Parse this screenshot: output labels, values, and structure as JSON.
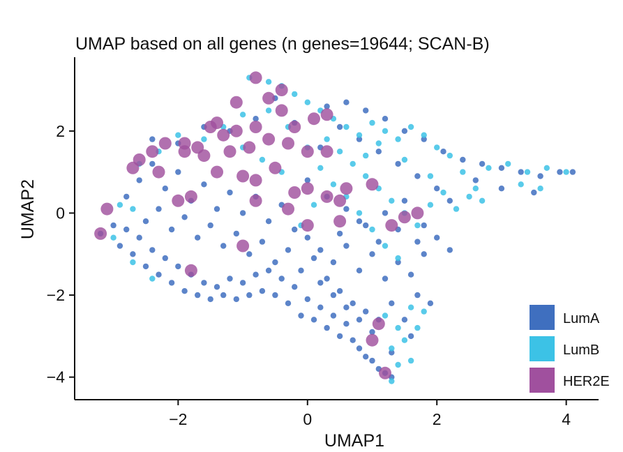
{
  "chart_data": {
    "type": "scatter",
    "title": "UMAP based on all genes (n genes=19644; SCAN-B)",
    "xlabel": "UMAP1",
    "ylabel": "UMAP2",
    "xlim": [
      -3.6,
      4.5
    ],
    "ylim": [
      -4.55,
      3.8
    ],
    "x_ticks": [
      -2,
      0,
      2,
      4
    ],
    "y_ticks": [
      -4,
      -2,
      0,
      2
    ],
    "x_tick_labels": [
      "−2",
      "0",
      "2",
      "4"
    ],
    "y_tick_labels": [
      "−4",
      "−2",
      "0",
      "2"
    ],
    "grid": false,
    "legend_position": "bottom-right",
    "series": [
      {
        "name": "LumA",
        "color": "#3f6fbf",
        "marker_size": "small",
        "points": [
          [
            -3.2,
            -0.5
          ],
          [
            -3.0,
            -0.3
          ],
          [
            -2.9,
            -0.8
          ],
          [
            -2.8,
            -0.4
          ],
          [
            -2.7,
            -1.0
          ],
          [
            -2.6,
            -0.6
          ],
          [
            -2.5,
            -1.3
          ],
          [
            -2.4,
            -0.9
          ],
          [
            -2.3,
            -1.5
          ],
          [
            -2.2,
            -1.1
          ],
          [
            -2.1,
            -1.7
          ],
          [
            -2.0,
            -1.3
          ],
          [
            -1.9,
            -1.9
          ],
          [
            -1.8,
            -1.5
          ],
          [
            -1.7,
            -2.0
          ],
          [
            -1.6,
            -1.7
          ],
          [
            -1.5,
            -2.1
          ],
          [
            -1.4,
            -1.8
          ],
          [
            -1.3,
            -2.0
          ],
          [
            -1.2,
            -1.6
          ],
          [
            -1.1,
            -2.1
          ],
          [
            -1.0,
            -1.7
          ],
          [
            -0.9,
            -2.0
          ],
          [
            -0.8,
            -1.5
          ],
          [
            -0.7,
            -1.9
          ],
          [
            -0.6,
            -1.4
          ],
          [
            -0.5,
            -2.0
          ],
          [
            -0.4,
            -1.6
          ],
          [
            -0.3,
            -2.2
          ],
          [
            -0.2,
            -1.8
          ],
          [
            -0.1,
            -2.5
          ],
          [
            0.0,
            -2.1
          ],
          [
            0.1,
            -2.6
          ],
          [
            0.2,
            -2.3
          ],
          [
            0.3,
            -2.8
          ],
          [
            0.4,
            -2.5
          ],
          [
            0.5,
            -3.0
          ],
          [
            0.6,
            -2.7
          ],
          [
            0.7,
            -3.1
          ],
          [
            0.8,
            -3.3
          ],
          [
            0.9,
            -3.5
          ],
          [
            1.0,
            -3.6
          ],
          [
            1.1,
            -3.8
          ],
          [
            1.2,
            -3.9
          ],
          [
            1.3,
            -4.0
          ],
          [
            -2.8,
            0.4
          ],
          [
            -2.6,
            0.8
          ],
          [
            -2.4,
            1.2
          ],
          [
            -2.2,
            0.6
          ],
          [
            -2.0,
            1.0
          ],
          [
            -1.8,
            0.3
          ],
          [
            -1.6,
            0.7
          ],
          [
            -1.4,
            0.1
          ],
          [
            -1.2,
            0.5
          ],
          [
            -1.0,
            0.0
          ],
          [
            -0.8,
            0.4
          ],
          [
            -0.6,
            -0.2
          ],
          [
            -0.4,
            0.2
          ],
          [
            -0.2,
            -0.4
          ],
          [
            0.0,
            -0.6
          ],
          [
            0.2,
            -0.9
          ],
          [
            0.4,
            -1.2
          ],
          [
            0.6,
            -0.8
          ],
          [
            0.8,
            -1.4
          ],
          [
            1.0,
            -1.0
          ],
          [
            1.2,
            -1.6
          ],
          [
            1.4,
            -1.2
          ],
          [
            1.6,
            -1.5
          ],
          [
            1.8,
            -1.0
          ],
          [
            -2.5,
            -0.2
          ],
          [
            -2.3,
            0.1
          ],
          [
            -2.1,
            -0.4
          ],
          [
            -1.9,
            -0.1
          ],
          [
            -1.7,
            -0.6
          ],
          [
            -1.5,
            -0.3
          ],
          [
            -1.3,
            -0.8
          ],
          [
            -1.1,
            -0.5
          ],
          [
            -0.9,
            -1.0
          ],
          [
            -0.7,
            -0.7
          ],
          [
            -0.5,
            -1.2
          ],
          [
            -0.3,
            -0.9
          ],
          [
            -0.1,
            -1.4
          ],
          [
            0.1,
            -1.1
          ],
          [
            0.3,
            -1.6
          ],
          [
            0.5,
            -1.9
          ],
          [
            0.7,
            -2.2
          ],
          [
            0.9,
            -2.4
          ],
          [
            1.1,
            -2.6
          ],
          [
            1.3,
            -2.2
          ],
          [
            1.5,
            -2.6
          ],
          [
            1.7,
            -2.0
          ],
          [
            1.9,
            -2.2
          ],
          [
            1.6,
            -3.0
          ],
          [
            1.3,
            -3.4
          ],
          [
            1.0,
            -2.9
          ],
          [
            0.8,
            -2.6
          ],
          [
            0.6,
            -2.3
          ],
          [
            0.4,
            -2.0
          ],
          [
            0.2,
            -1.7
          ],
          [
            0.3,
            2.6
          ],
          [
            0.6,
            2.7
          ],
          [
            0.9,
            2.5
          ],
          [
            1.2,
            2.3
          ],
          [
            1.5,
            2.0
          ],
          [
            1.8,
            1.8
          ],
          [
            2.1,
            1.5
          ],
          [
            2.4,
            1.3
          ],
          [
            2.7,
            1.2
          ],
          [
            3.0,
            1.1
          ],
          [
            3.3,
            1.0
          ],
          [
            3.6,
            0.9
          ],
          [
            3.9,
            1.0
          ],
          [
            4.1,
            1.0
          ],
          [
            3.5,
            0.5
          ],
          [
            3.0,
            0.6
          ],
          [
            2.6,
            0.8
          ],
          [
            2.2,
            0.3
          ],
          [
            2.0,
            0.6
          ],
          [
            1.7,
            0.9
          ],
          [
            1.4,
            1.2
          ],
          [
            1.1,
            1.5
          ],
          [
            0.8,
            1.8
          ],
          [
            0.5,
            2.1
          ],
          [
            0.2,
            1.6
          ],
          [
            -0.2,
            2.2
          ],
          [
            -0.5,
            2.8
          ],
          [
            -0.8,
            2.3
          ],
          [
            -1.2,
            2.0
          ],
          [
            -1.6,
            2.1
          ],
          [
            -2.0,
            1.7
          ],
          [
            -2.4,
            1.8
          ],
          [
            1.5,
            0.3
          ],
          [
            1.2,
            0.0
          ],
          [
            0.9,
            -0.3
          ],
          [
            0.6,
            0.1
          ],
          [
            0.3,
            0.4
          ],
          [
            0.0,
            0.8
          ],
          [
            1.8,
            -0.3
          ],
          [
            2.0,
            -0.6
          ],
          [
            2.2,
            -0.9
          ],
          [
            1.7,
            -0.7
          ],
          [
            1.4,
            -0.4
          ],
          [
            1.1,
            -0.7
          ],
          [
            0.8,
            -0.2
          ],
          [
            0.5,
            -0.5
          ]
        ]
      },
      {
        "name": "LumB",
        "color": "#3cc2e6",
        "marker_size": "small",
        "points": [
          [
            -0.9,
            3.3
          ],
          [
            -0.6,
            3.2
          ],
          [
            -0.4,
            3.1
          ],
          [
            -0.2,
            2.9
          ],
          [
            0.0,
            2.7
          ],
          [
            0.2,
            2.5
          ],
          [
            0.4,
            2.3
          ],
          [
            0.6,
            2.1
          ],
          [
            0.8,
            1.9
          ],
          [
            1.0,
            2.2
          ],
          [
            1.2,
            2.0
          ],
          [
            1.4,
            1.8
          ],
          [
            1.6,
            2.1
          ],
          [
            1.8,
            1.9
          ],
          [
            2.0,
            1.6
          ],
          [
            2.2,
            1.4
          ],
          [
            0.3,
            1.8
          ],
          [
            0.5,
            1.5
          ],
          [
            0.7,
            1.2
          ],
          [
            0.9,
            0.9
          ],
          [
            1.1,
            0.6
          ],
          [
            1.3,
            0.3
          ],
          [
            1.5,
            0.0
          ],
          [
            1.7,
            -0.3
          ],
          [
            1.9,
            0.2
          ],
          [
            2.1,
            0.5
          ],
          [
            2.3,
            0.1
          ],
          [
            2.5,
            0.4
          ],
          [
            2.7,
            0.3
          ],
          [
            2.8,
            1.1
          ],
          [
            3.1,
            1.2
          ],
          [
            3.4,
            1.0
          ],
          [
            3.7,
            1.1
          ],
          [
            4.0,
            1.0
          ],
          [
            3.3,
            0.7
          ],
          [
            3.6,
            0.6
          ],
          [
            -1.0,
            2.4
          ],
          [
            -1.3,
            2.1
          ],
          [
            -1.6,
            1.8
          ],
          [
            -2.0,
            1.9
          ],
          [
            -2.3,
            1.5
          ],
          [
            -2.6,
            1.2
          ],
          [
            -0.6,
            2.5
          ],
          [
            -0.3,
            2.1
          ],
          [
            0.0,
            1.6
          ],
          [
            0.2,
            1.1
          ],
          [
            0.4,
            0.7
          ],
          [
            0.6,
            0.4
          ],
          [
            0.8,
            0.0
          ],
          [
            1.0,
            -0.4
          ],
          [
            1.2,
            -0.8
          ],
          [
            1.4,
            -1.1
          ],
          [
            1.6,
            -2.3
          ],
          [
            1.4,
            -2.8
          ],
          [
            1.3,
            -3.3
          ],
          [
            1.4,
            -3.7
          ],
          [
            1.3,
            -4.1
          ],
          [
            1.6,
            -3.6
          ],
          [
            1.7,
            -2.8
          ],
          [
            1.8,
            -2.4
          ],
          [
            1.2,
            -2.5
          ],
          [
            1.5,
            -3.1
          ],
          [
            -2.9,
            0.2
          ],
          [
            -2.7,
            0.1
          ],
          [
            -3.0,
            -0.6
          ],
          [
            -2.7,
            -1.2
          ],
          [
            -2.4,
            -1.6
          ],
          [
            -0.1,
            -0.3
          ],
          [
            0.1,
            0.2
          ],
          [
            -0.4,
            1.0
          ],
          [
            -0.7,
            1.3
          ],
          [
            -1.0,
            1.6
          ],
          [
            0.9,
            1.4
          ],
          [
            1.1,
            1.7
          ],
          [
            1.5,
            1.3
          ],
          [
            1.9,
            0.9
          ],
          [
            2.4,
            1.0
          ],
          [
            2.6,
            0.6
          ]
        ]
      },
      {
        "name": "HER2E",
        "color": "#a0509e",
        "marker_size": "large",
        "points": [
          [
            -0.8,
            3.3
          ],
          [
            -0.4,
            3.0
          ],
          [
            -0.6,
            2.8
          ],
          [
            -1.1,
            2.7
          ],
          [
            -0.4,
            2.5
          ],
          [
            -0.2,
            2.1
          ],
          [
            0.1,
            2.3
          ],
          [
            0.3,
            2.4
          ],
          [
            -1.5,
            2.1
          ],
          [
            -1.4,
            2.2
          ],
          [
            -1.1,
            2.0
          ],
          [
            -0.8,
            2.1
          ],
          [
            -1.3,
            1.9
          ],
          [
            -1.7,
            1.6
          ],
          [
            -1.9,
            1.7
          ],
          [
            -2.2,
            1.7
          ],
          [
            -2.4,
            1.5
          ],
          [
            -2.6,
            1.3
          ],
          [
            -2.7,
            1.1
          ],
          [
            -2.3,
            1.0
          ],
          [
            -1.9,
            1.5
          ],
          [
            -1.6,
            1.4
          ],
          [
            -1.2,
            1.5
          ],
          [
            -0.9,
            1.6
          ],
          [
            -0.6,
            1.8
          ],
          [
            -0.3,
            1.7
          ],
          [
            0.0,
            1.5
          ],
          [
            0.3,
            1.5
          ],
          [
            -1.4,
            1.0
          ],
          [
            -1.0,
            0.9
          ],
          [
            -0.8,
            0.8
          ],
          [
            -0.5,
            1.1
          ],
          [
            -0.2,
            0.5
          ],
          [
            0.0,
            0.6
          ],
          [
            0.3,
            0.4
          ],
          [
            0.6,
            0.6
          ],
          [
            1.0,
            0.7
          ],
          [
            0.5,
            0.3
          ],
          [
            -1.8,
            0.4
          ],
          [
            -2.0,
            0.3
          ],
          [
            -3.1,
            0.1
          ],
          [
            -3.2,
            -0.5
          ],
          [
            0.0,
            -0.3
          ],
          [
            0.5,
            -0.2
          ],
          [
            1.3,
            -0.3
          ],
          [
            1.7,
            0.0
          ],
          [
            1.5,
            -0.1
          ],
          [
            -1.0,
            -0.8
          ],
          [
            -1.8,
            -1.4
          ],
          [
            1.1,
            -2.7
          ],
          [
            1.0,
            -3.1
          ],
          [
            1.2,
            -3.9
          ],
          [
            -0.8,
            0.3
          ],
          [
            -0.3,
            0.1
          ]
        ]
      }
    ]
  }
}
